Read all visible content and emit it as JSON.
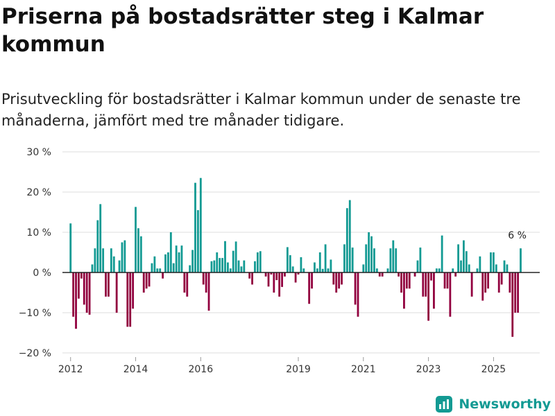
{
  "title": "Priserna på bostadsrätter steg i Kalmar kommun",
  "subtitle": "Prisutveckling för bostadsrätter i Kalmar kommun under de senaste tre månaderna, jämfört med tre månader tidigare.",
  "brand": {
    "name": "Newsworthy",
    "icon": "newsworthy-logo-icon"
  },
  "colors": {
    "positive": "#129a93",
    "negative": "#92023f",
    "grid": "#dddddd",
    "axis": "#222222",
    "brand": "#139a93"
  },
  "chart_data": {
    "type": "bar",
    "title": "Priserna på bostadsrätter steg i Kalmar kommun",
    "xlabel": "",
    "ylabel": "",
    "ylim": [
      -20,
      30
    ],
    "yticks": [
      -20,
      -10,
      0,
      10,
      20,
      30
    ],
    "ytick_labels": [
      "−20 %",
      "−10 %",
      "0 %",
      "10 %",
      "20 %",
      "30 %"
    ],
    "xlim": [
      2011.75,
      2026.42
    ],
    "xticks": [
      2012,
      2014,
      2016,
      2019,
      2021,
      2023,
      2025
    ],
    "xtick_labels": [
      "2012",
      "2014",
      "2016",
      "2019",
      "2021",
      "2023",
      "2025"
    ],
    "start": {
      "year": 2012,
      "month": 1
    },
    "annotation": {
      "text": "6 %",
      "year": 2025,
      "month": 10,
      "value": 6
    },
    "values": [
      12.2,
      -11,
      -14,
      -6.5,
      -1.5,
      -8,
      -10,
      -10.5,
      2,
      6,
      13,
      17,
      6,
      -6,
      -6,
      6,
      4,
      -10,
      3,
      7.5,
      8,
      -13.5,
      -13.5,
      -9,
      16.3,
      11,
      9,
      -5,
      -4,
      -3.5,
      2.3,
      4,
      1,
      1,
      -1.5,
      4.5,
      5,
      10,
      2.3,
      6.7,
      5,
      6.7,
      -5,
      -6,
      1.8,
      5.6,
      22.3,
      15.5,
      23.5,
      -3,
      -5,
      -9.5,
      2.8,
      3,
      5,
      3.6,
      3.6,
      7.8,
      2.5,
      1,
      5.4,
      7.7,
      3,
      1.5,
      3,
      0,
      -1.5,
      -3,
      2.8,
      5,
      5.3,
      0,
      -1,
      -3.5,
      -0.5,
      -5,
      -1.9,
      -6,
      -3.6,
      -1,
      6.3,
      4.3,
      1.5,
      -2.5,
      -0.5,
      3.8,
      1,
      0,
      -7.8,
      -4,
      2.5,
      1,
      5,
      0.9,
      7,
      1,
      3.2,
      -3,
      -5,
      -4,
      -3,
      7,
      16,
      18,
      6.2,
      -8,
      -11,
      0,
      2,
      7,
      10,
      9,
      6,
      1,
      -1,
      -1,
      0,
      1,
      6,
      8,
      6,
      -1,
      -5,
      -9,
      -4,
      -4,
      0,
      -1,
      3,
      6.2,
      -6,
      -6,
      -12,
      -2,
      -9,
      1,
      1,
      9.2,
      -4,
      -4,
      -11,
      1,
      -1,
      7,
      3,
      8,
      5.3,
      2,
      -6,
      0,
      1,
      4,
      -7,
      -5,
      -4,
      5,
      5,
      2,
      -5,
      -3,
      3,
      2,
      -5,
      -16,
      -10,
      -10,
      6
    ]
  }
}
